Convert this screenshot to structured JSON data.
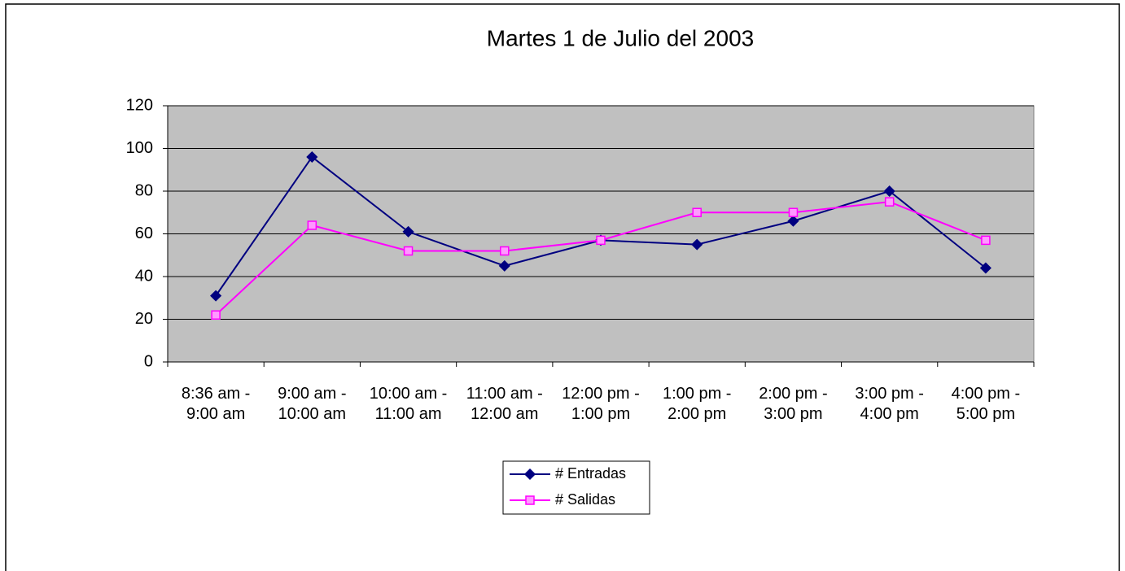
{
  "chart_data": {
    "type": "line",
    "title": "Martes 1 de Julio del 2003",
    "categories": [
      "8:36 am - 9:00 am",
      "9:00 am - 10:00 am",
      "10:00 am - 11:00 am",
      "11:00 am - 12:00 am",
      "12:00 pm - 1:00 pm",
      "1:00 pm - 2:00 pm",
      "2:00 pm - 3:00 pm",
      "3:00 pm - 4:00 pm",
      "4:00 pm - 5:00 pm"
    ],
    "series": [
      {
        "name": "# Entradas",
        "color": "#000080",
        "marker": "diamond",
        "values": [
          31,
          96,
          61,
          45,
          57,
          55,
          66,
          80,
          44
        ]
      },
      {
        "name": "# Salidas",
        "color": "#ff00ff",
        "marker": "square",
        "values": [
          22,
          64,
          52,
          52,
          57,
          70,
          70,
          75,
          57
        ]
      }
    ],
    "ylim": [
      0,
      120
    ],
    "yticks": [
      0,
      20,
      40,
      60,
      80,
      100,
      120
    ],
    "grid": true,
    "legend": "bottom",
    "plot_background": "#c0c0c0"
  }
}
